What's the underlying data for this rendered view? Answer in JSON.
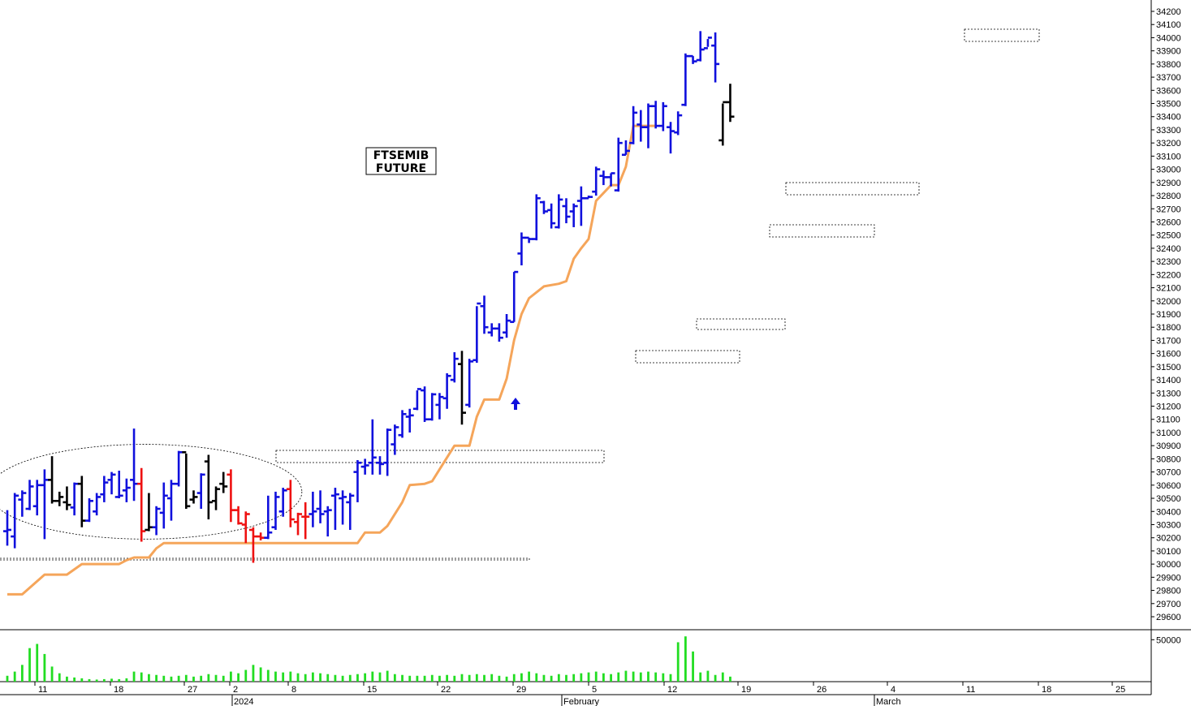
{
  "chart_data": {
    "type": "ohlc",
    "title": "FTSEMIB FUTURE",
    "title_lines": [
      "FTSEMIB",
      "FUTURE"
    ],
    "colors": {
      "up": "#1010dd",
      "down_black": "#000000",
      "down_red": "#ee1111",
      "stop_line": "#f5a55a",
      "volume": "#22dd22"
    },
    "ylim": [
      29550,
      34250
    ],
    "y_ticks": [
      29600,
      29700,
      29800,
      29900,
      30000,
      30100,
      30200,
      30300,
      30400,
      30500,
      30600,
      30700,
      30800,
      30900,
      31000,
      31100,
      31200,
      31300,
      31400,
      31500,
      31600,
      31700,
      31800,
      31900,
      32000,
      32100,
      32200,
      32300,
      32400,
      32500,
      32600,
      32700,
      32800,
      32900,
      33000,
      33100,
      33200,
      33300,
      33400,
      33500,
      33600,
      33700,
      33800,
      33900,
      34000,
      34100,
      34200
    ],
    "x_day_ticks": [
      "11",
      "18",
      "27",
      "2",
      "8",
      "15",
      "22",
      "29",
      "5",
      "12",
      "19",
      "26",
      "4",
      "11",
      "18",
      "25"
    ],
    "x_month_labels": [
      "2024",
      "February",
      "March"
    ],
    "volume_tick": "50000",
    "volume_max": 60000,
    "bars": [
      {
        "o": 30250,
        "h": 30410,
        "l": 30140,
        "c": 30260,
        "v": 7000,
        "col": "up"
      },
      {
        "o": 30210,
        "h": 30540,
        "l": 30120,
        "c": 30520,
        "v": 12000,
        "col": "up"
      },
      {
        "o": 30490,
        "h": 30560,
        "l": 30360,
        "c": 30540,
        "v": 20000,
        "col": "up"
      },
      {
        "o": 30420,
        "h": 30640,
        "l": 30410,
        "c": 30590,
        "v": 40000,
        "col": "up"
      },
      {
        "o": 30440,
        "h": 30640,
        "l": 30370,
        "c": 30600,
        "v": 45000,
        "col": "up"
      },
      {
        "o": 30600,
        "h": 30720,
        "l": 30190,
        "c": 30640,
        "v": 33000,
        "col": "up"
      },
      {
        "o": 30640,
        "h": 30820,
        "l": 30460,
        "c": 30480,
        "v": 18000,
        "col": "down_black"
      },
      {
        "o": 30480,
        "h": 30550,
        "l": 30440,
        "c": 30510,
        "v": 10000,
        "col": "down_black"
      },
      {
        "o": 30470,
        "h": 30590,
        "l": 30410,
        "c": 30450,
        "v": 6000,
        "col": "down_black"
      },
      {
        "o": 30430,
        "h": 30620,
        "l": 30370,
        "c": 30610,
        "v": 5000,
        "col": "up"
      },
      {
        "o": 30610,
        "h": 30670,
        "l": 30280,
        "c": 30330,
        "v": 4000,
        "col": "down_black"
      },
      {
        "o": 30330,
        "h": 30500,
        "l": 30320,
        "c": 30480,
        "v": 3000,
        "col": "up"
      },
      {
        "o": 30400,
        "h": 30540,
        "l": 30370,
        "c": 30510,
        "v": 2500,
        "col": "up"
      },
      {
        "o": 30530,
        "h": 30670,
        "l": 30470,
        "c": 30620,
        "v": 3000,
        "col": "up"
      },
      {
        "o": 30640,
        "h": 30700,
        "l": 30530,
        "c": 30680,
        "v": 3500,
        "col": "up"
      },
      {
        "o": 30510,
        "h": 30710,
        "l": 30500,
        "c": 30520,
        "v": 3000,
        "col": "up"
      },
      {
        "o": 30560,
        "h": 30650,
        "l": 30470,
        "c": 30580,
        "v": 4000,
        "col": "up"
      },
      {
        "o": 30640,
        "h": 31030,
        "l": 30480,
        "c": 30610,
        "v": 12000,
        "col": "up"
      },
      {
        "o": 30610,
        "h": 30730,
        "l": 30170,
        "c": 30250,
        "v": 11000,
        "col": "down_red"
      },
      {
        "o": 30260,
        "h": 30540,
        "l": 30250,
        "c": 30280,
        "v": 9000,
        "col": "down_black"
      },
      {
        "o": 30280,
        "h": 30440,
        "l": 30220,
        "c": 30420,
        "v": 8000,
        "col": "up"
      },
      {
        "o": 30390,
        "h": 30620,
        "l": 30270,
        "c": 30520,
        "v": 7000,
        "col": "up"
      },
      {
        "o": 30500,
        "h": 30640,
        "l": 30330,
        "c": 30610,
        "v": 6000,
        "col": "up"
      },
      {
        "o": 30610,
        "h": 30860,
        "l": 30590,
        "c": 30850,
        "v": 7000,
        "col": "up"
      },
      {
        "o": 30850,
        "h": 30840,
        "l": 30420,
        "c": 30440,
        "v": 8000,
        "col": "down_black"
      },
      {
        "o": 30490,
        "h": 30560,
        "l": 30460,
        "c": 30510,
        "v": 6000,
        "col": "down_black"
      },
      {
        "o": 30540,
        "h": 30690,
        "l": 30420,
        "c": 30680,
        "v": 7000,
        "col": "up"
      },
      {
        "o": 30780,
        "h": 30830,
        "l": 30340,
        "c": 30470,
        "v": 9000,
        "col": "down_black"
      },
      {
        "o": 30480,
        "h": 30590,
        "l": 30410,
        "c": 30570,
        "v": 8000,
        "col": "down_black"
      },
      {
        "o": 30610,
        "h": 30700,
        "l": 30540,
        "c": 30590,
        "v": 7000,
        "col": "down_black"
      },
      {
        "o": 30680,
        "h": 30720,
        "l": 30320,
        "c": 30410,
        "v": 12000,
        "col": "down_red"
      },
      {
        "o": 30410,
        "h": 30440,
        "l": 30300,
        "c": 30310,
        "v": 10000,
        "col": "down_red"
      },
      {
        "o": 30300,
        "h": 30400,
        "l": 30160,
        "c": 30380,
        "v": 14000,
        "col": "down_red"
      },
      {
        "o": 30260,
        "h": 30280,
        "l": 30010,
        "c": 30210,
        "v": 20000,
        "col": "down_red"
      },
      {
        "o": 30210,
        "h": 30240,
        "l": 30180,
        "c": 30200,
        "v": 17000,
        "col": "down_red"
      },
      {
        "o": 30200,
        "h": 30520,
        "l": 30190,
        "c": 30240,
        "v": 14000,
        "col": "up"
      },
      {
        "o": 30280,
        "h": 30550,
        "l": 30260,
        "c": 30510,
        "v": 12000,
        "col": "up"
      },
      {
        "o": 30400,
        "h": 30580,
        "l": 30360,
        "c": 30560,
        "v": 11000,
        "col": "up"
      },
      {
        "o": 30570,
        "h": 30640,
        "l": 30280,
        "c": 30340,
        "v": 12000,
        "col": "down_red"
      },
      {
        "o": 30320,
        "h": 30390,
        "l": 30220,
        "c": 30380,
        "v": 10000,
        "col": "down_red"
      },
      {
        "o": 30360,
        "h": 30470,
        "l": 30190,
        "c": 30360,
        "v": 9000,
        "col": "down_red"
      },
      {
        "o": 30380,
        "h": 30550,
        "l": 30280,
        "c": 30400,
        "v": 11000,
        "col": "up"
      },
      {
        "o": 30420,
        "h": 30560,
        "l": 30310,
        "c": 30380,
        "v": 10000,
        "col": "up"
      },
      {
        "o": 30400,
        "h": 30440,
        "l": 30210,
        "c": 30410,
        "v": 9000,
        "col": "up"
      },
      {
        "o": 30520,
        "h": 30580,
        "l": 30260,
        "c": 30530,
        "v": 8000,
        "col": "up"
      },
      {
        "o": 30500,
        "h": 30560,
        "l": 30300,
        "c": 30510,
        "v": 7000,
        "col": "up"
      },
      {
        "o": 30470,
        "h": 30540,
        "l": 30260,
        "c": 30520,
        "v": 8000,
        "col": "up"
      },
      {
        "o": 30700,
        "h": 30790,
        "l": 30470,
        "c": 30770,
        "v": 9000,
        "col": "up"
      },
      {
        "o": 30740,
        "h": 30800,
        "l": 30680,
        "c": 30750,
        "v": 10000,
        "col": "up"
      },
      {
        "o": 30770,
        "h": 31100,
        "l": 30680,
        "c": 30810,
        "v": 12000,
        "col": "up"
      },
      {
        "o": 30770,
        "h": 30820,
        "l": 30680,
        "c": 30760,
        "v": 11000,
        "col": "up"
      },
      {
        "o": 30770,
        "h": 31030,
        "l": 30670,
        "c": 31020,
        "v": 13000,
        "col": "up"
      },
      {
        "o": 30910,
        "h": 31060,
        "l": 30830,
        "c": 31040,
        "v": 9000,
        "col": "up"
      },
      {
        "o": 30980,
        "h": 31170,
        "l": 30960,
        "c": 31140,
        "v": 8000,
        "col": "up"
      },
      {
        "o": 31120,
        "h": 31180,
        "l": 31000,
        "c": 31130,
        "v": 7000,
        "col": "up"
      },
      {
        "o": 31180,
        "h": 31320,
        "l": 31170,
        "c": 31330,
        "v": 7000,
        "col": "up"
      },
      {
        "o": 31320,
        "h": 31350,
        "l": 31080,
        "c": 31100,
        "v": 7000,
        "col": "up"
      },
      {
        "o": 31100,
        "h": 31300,
        "l": 31090,
        "c": 31290,
        "v": 8000,
        "col": "up"
      },
      {
        "o": 31210,
        "h": 31300,
        "l": 31100,
        "c": 31270,
        "v": 7000,
        "col": "up"
      },
      {
        "o": 31260,
        "h": 31450,
        "l": 31180,
        "c": 31430,
        "v": 8000,
        "col": "up"
      },
      {
        "o": 31400,
        "h": 31610,
        "l": 31380,
        "c": 31560,
        "v": 7000,
        "col": "up"
      },
      {
        "o": 31520,
        "h": 31620,
        "l": 31060,
        "c": 31150,
        "v": 9000,
        "col": "down_black"
      },
      {
        "o": 31210,
        "h": 31560,
        "l": 31190,
        "c": 31540,
        "v": 8000,
        "col": "up"
      },
      {
        "o": 31550,
        "h": 31960,
        "l": 31530,
        "c": 31980,
        "v": 9000,
        "col": "up"
      },
      {
        "o": 31960,
        "h": 32040,
        "l": 31750,
        "c": 31800,
        "v": 8000,
        "col": "up"
      },
      {
        "o": 31760,
        "h": 31830,
        "l": 31730,
        "c": 31790,
        "v": 9000,
        "col": "up"
      },
      {
        "o": 31790,
        "h": 31830,
        "l": 31690,
        "c": 31720,
        "v": 7000,
        "col": "up"
      },
      {
        "o": 31760,
        "h": 31900,
        "l": 31720,
        "c": 31850,
        "v": 6000,
        "col": "up"
      },
      {
        "o": 31840,
        "h": 32220,
        "l": 31840,
        "c": 32220,
        "v": 9000,
        "col": "up"
      },
      {
        "o": 32360,
        "h": 32520,
        "l": 32270,
        "c": 32480,
        "v": 10000,
        "col": "up"
      },
      {
        "o": 32480,
        "h": 32480,
        "l": 32440,
        "c": 32470,
        "v": 12000,
        "col": "up"
      },
      {
        "o": 32470,
        "h": 32810,
        "l": 32460,
        "c": 32780,
        "v": 10000,
        "col": "up"
      },
      {
        "o": 32750,
        "h": 32760,
        "l": 32660,
        "c": 32680,
        "v": 8000,
        "col": "up"
      },
      {
        "o": 32690,
        "h": 32740,
        "l": 32550,
        "c": 32590,
        "v": 7000,
        "col": "up"
      },
      {
        "o": 32560,
        "h": 32810,
        "l": 32550,
        "c": 32770,
        "v": 9000,
        "col": "up"
      },
      {
        "o": 32720,
        "h": 32780,
        "l": 32590,
        "c": 32640,
        "v": 8000,
        "col": "up"
      },
      {
        "o": 32680,
        "h": 32740,
        "l": 32560,
        "c": 32720,
        "v": 9000,
        "col": "up"
      },
      {
        "o": 32760,
        "h": 32870,
        "l": 32570,
        "c": 32780,
        "v": 10000,
        "col": "up"
      },
      {
        "o": 32780,
        "h": 32800,
        "l": 32780,
        "c": 32790,
        "v": 11000,
        "col": "up"
      },
      {
        "o": 32830,
        "h": 33020,
        "l": 32800,
        "c": 33000,
        "v": 12000,
        "col": "up"
      },
      {
        "o": 32950,
        "h": 32990,
        "l": 32880,
        "c": 32940,
        "v": 10000,
        "col": "up"
      },
      {
        "o": 32940,
        "h": 32970,
        "l": 32870,
        "c": 32970,
        "v": 9000,
        "col": "up"
      },
      {
        "o": 32840,
        "h": 33240,
        "l": 32830,
        "c": 33200,
        "v": 11000,
        "col": "up"
      },
      {
        "o": 33110,
        "h": 33220,
        "l": 33110,
        "c": 33140,
        "v": 13000,
        "col": "up"
      },
      {
        "o": 33200,
        "h": 33480,
        "l": 33190,
        "c": 33430,
        "v": 12000,
        "col": "up"
      },
      {
        "o": 33340,
        "h": 33450,
        "l": 33210,
        "c": 33320,
        "v": 11000,
        "col": "up"
      },
      {
        "o": 33320,
        "h": 33500,
        "l": 33160,
        "c": 33480,
        "v": 12000,
        "col": "up"
      },
      {
        "o": 33480,
        "h": 33520,
        "l": 33310,
        "c": 33330,
        "v": 11000,
        "col": "up"
      },
      {
        "o": 33330,
        "h": 33510,
        "l": 33290,
        "c": 33480,
        "v": 10000,
        "col": "up"
      },
      {
        "o": 33320,
        "h": 33360,
        "l": 33120,
        "c": 33290,
        "v": 9000,
        "col": "up"
      },
      {
        "o": 33280,
        "h": 33440,
        "l": 33260,
        "c": 33410,
        "v": 47000,
        "col": "up"
      },
      {
        "o": 33490,
        "h": 33880,
        "l": 33480,
        "c": 33860,
        "v": 54000,
        "col": "up"
      },
      {
        "o": 33860,
        "h": 33860,
        "l": 33800,
        "c": 33820,
        "v": 36000,
        "col": "up"
      },
      {
        "o": 33830,
        "h": 34050,
        "l": 33820,
        "c": 33910,
        "v": 11000,
        "col": "up"
      },
      {
        "o": 33920,
        "h": 33990,
        "l": 33930,
        "c": 34000,
        "v": 13000,
        "col": "up"
      },
      {
        "o": 33940,
        "h": 34040,
        "l": 33660,
        "c": 33800,
        "v": 8000,
        "col": "up"
      },
      {
        "o": 33220,
        "h": 33500,
        "l": 33180,
        "c": 33510,
        "v": 11000,
        "col": "down_black"
      },
      {
        "o": 33510,
        "h": 33650,
        "l": 33360,
        "c": 33400,
        "v": 6000,
        "col": "down_black"
      }
    ],
    "stop_line": [
      {
        "i": 0,
        "v": 29770
      },
      {
        "i": 2,
        "v": 29770
      },
      {
        "i": 4,
        "v": 29870
      },
      {
        "i": 5,
        "v": 29920
      },
      {
        "i": 7,
        "v": 29920
      },
      {
        "i": 8,
        "v": 29920
      },
      {
        "i": 9,
        "v": 29960
      },
      {
        "i": 10,
        "v": 30000
      },
      {
        "i": 15,
        "v": 30000
      },
      {
        "i": 16,
        "v": 30030
      },
      {
        "i": 17,
        "v": 30050
      },
      {
        "i": 19,
        "v": 30050
      },
      {
        "i": 20,
        "v": 30120
      },
      {
        "i": 21,
        "v": 30160
      },
      {
        "i": 47,
        "v": 30160
      },
      {
        "i": 48,
        "v": 30240
      },
      {
        "i": 50,
        "v": 30240
      },
      {
        "i": 51,
        "v": 30290
      },
      {
        "i": 53,
        "v": 30470
      },
      {
        "i": 54,
        "v": 30600
      },
      {
        "i": 56,
        "v": 30610
      },
      {
        "i": 57,
        "v": 30630
      },
      {
        "i": 58,
        "v": 30720
      },
      {
        "i": 60,
        "v": 30900
      },
      {
        "i": 62,
        "v": 30900
      },
      {
        "i": 63,
        "v": 31120
      },
      {
        "i": 64,
        "v": 31250
      },
      {
        "i": 66,
        "v": 31250
      },
      {
        "i": 67,
        "v": 31410
      },
      {
        "i": 68,
        "v": 31700
      },
      {
        "i": 69,
        "v": 31900
      },
      {
        "i": 70,
        "v": 32020
      },
      {
        "i": 72,
        "v": 32110
      },
      {
        "i": 74,
        "v": 32130
      },
      {
        "i": 75,
        "v": 32150
      },
      {
        "i": 76,
        "v": 32320
      },
      {
        "i": 77,
        "v": 32400
      },
      {
        "i": 78,
        "v": 32470
      },
      {
        "i": 79,
        "v": 32760
      },
      {
        "i": 80,
        "v": 32820
      },
      {
        "i": 81,
        "v": 32880
      },
      {
        "i": 82,
        "v": 32880
      },
      {
        "i": 83,
        "v": 33020
      },
      {
        "i": 84,
        "v": 33330
      },
      {
        "i": 87,
        "v": 33330
      }
    ],
    "annotations": {
      "ellipse": {
        "i_center": 18.5,
        "v_center": 30550,
        "i_radius": 19.5,
        "v_radius": 360
      },
      "boxes": [
        {
          "i0": 0,
          "i1": 35,
          "v0": 30020,
          "v1": 30160
        },
        {
          "i0": 18,
          "i1": 40,
          "v0": 30160,
          "v1": 30160
        },
        {
          "i0": 19,
          "i1": 42,
          "v0": 30780,
          "v1": 30860
        },
        {
          "i0": 36,
          "i1": 42,
          "v0": 30780,
          "v1": 30860
        },
        {
          "i0": 43,
          "i1": 51,
          "v0": 30780,
          "v1": 30860
        },
        {
          "i0": 49,
          "i1": 57,
          "v0": 30790,
          "v1": 30860
        },
        {
          "i0": 59,
          "i1": 66,
          "v0": 31520,
          "v1": 31600
        },
        {
          "i0": 64,
          "i1": 70,
          "v0": 31770,
          "v1": 31850
        },
        {
          "i0": 70,
          "i1": 79,
          "v0": 32480,
          "v1": 32570
        },
        {
          "i0": 71,
          "i1": 82,
          "v0": 32800,
          "v1": 32880
        },
        {
          "i0": 86,
          "i1": 91,
          "v0": 33950,
          "v1": 34050
        }
      ],
      "arrow": {
        "i": 48,
        "v": 31220
      }
    }
  }
}
